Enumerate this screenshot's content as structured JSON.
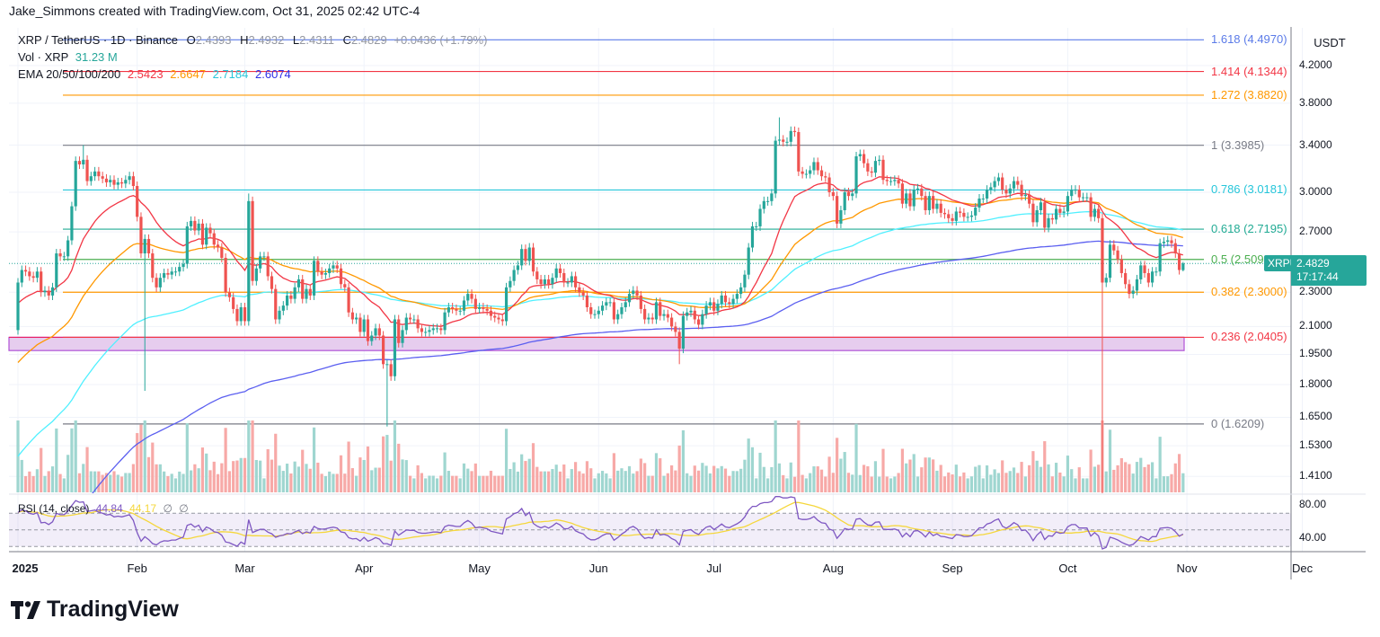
{
  "credit": "Jake_Simmons created with TradingView.com, Oct 31, 2025 02:42 UTC-4",
  "legend": {
    "symbol": "XRP / TetherUS · 1D · Binance",
    "open_label": "O",
    "open": "2.4393",
    "high_label": "H",
    "high": "2.4932",
    "low_label": "L",
    "low": "2.4311",
    "close_label": "C",
    "close": "2.4829",
    "change": "+0.0436 (+1.79%)",
    "vol_label": "Vol · XRP",
    "vol_value": "31.23 M",
    "ema_label": "EMA 20/50/100/200",
    "ema_values": [
      "2.5423",
      "2.6647",
      "2.7184",
      "2.6074"
    ],
    "rsi_label": "RSI (14, close)",
    "rsi_value": "44.84",
    "rsi_ma_value": "44.17",
    "rsi_extra1": "∅",
    "rsi_extra2": "∅"
  },
  "colors": {
    "up": "#26a69a",
    "down": "#ef5350",
    "ema20": "#f23645",
    "ema50": "#ff9800",
    "ema100": "#4ff0ff",
    "ema200": "#5b5ff0",
    "rsi": "#7e57c2",
    "rsi_ma": "#f5d73b",
    "zone_fill": "#e6cdee",
    "zone_border": "#b052d6"
  },
  "price_axis": {
    "unit": "USDT",
    "scale": "log",
    "ticks": [
      "4.2000",
      "3.8000",
      "3.4000",
      "3.0000",
      "2.7000",
      "2.3000",
      "2.1000",
      "1.9500",
      "1.8000",
      "1.6500",
      "1.5300",
      "1.4100"
    ],
    "current_symbol": "XRPUSDT",
    "current_price": "2.4829",
    "countdown": "17:17:44"
  },
  "rsi_axis": {
    "ticks": [
      "80.00",
      "40.00"
    ]
  },
  "time_axis": [
    "2025",
    "Feb",
    "Mar",
    "Apr",
    "May",
    "Jun",
    "Jul",
    "Aug",
    "Sep",
    "Oct",
    "Nov",
    "Dec"
  ],
  "fib_levels": [
    {
      "label": "1.618 (4.4970)",
      "price": 4.497,
      "color": "#5b7be8"
    },
    {
      "label": "1.414 (4.1344)",
      "price": 4.1344,
      "color": "#f23645"
    },
    {
      "label": "1.272 (3.8820)",
      "price": 3.882,
      "color": "#ff9800"
    },
    {
      "label": "1 (3.3985)",
      "price": 3.3985,
      "color": "#787b86"
    },
    {
      "label": "0.786 (3.0181)",
      "price": 3.0181,
      "color": "#26c6da"
    },
    {
      "label": "0.618 (2.7195)",
      "price": 2.7195,
      "color": "#22ab94"
    },
    {
      "label": "0.5 (2.509",
      "price": 2.5093,
      "color": "#4caf50"
    },
    {
      "label": "0.382 (2.3000)",
      "price": 2.3,
      "color": "#ff9800"
    },
    {
      "label": "0.236 (2.0405)",
      "price": 2.0405,
      "color": "#f23645"
    },
    {
      "label": "0 (1.6209)",
      "price": 1.6209,
      "color": "#787b86"
    }
  ],
  "support_zone": {
    "top": 2.0405,
    "bottom": 1.97
  },
  "chart_data": {
    "type": "candlestick",
    "scale": "log",
    "first_open": 2.08,
    "closes_by_month": [
      {
        "month": "2025-01",
        "closes": [
          2.36,
          2.44,
          2.43,
          2.4,
          2.39,
          2.43,
          2.3,
          2.31,
          2.28,
          2.33,
          2.55,
          2.53,
          2.53,
          2.64,
          2.89,
          3.26,
          3.23,
          3.27,
          3.09,
          3.13,
          3.17,
          3.13,
          3.11,
          3.08,
          3.1,
          3.06,
          3.08,
          3.07,
          3.1,
          3.13,
          3.05
        ]
      },
      {
        "month": "2025-02",
        "closes": [
          2.81,
          2.55,
          2.65,
          2.55,
          2.39,
          2.33,
          2.39,
          2.42,
          2.41,
          2.43,
          2.43,
          2.46,
          2.48,
          2.74,
          2.78,
          2.71,
          2.76,
          2.61,
          2.73,
          2.69,
          2.61,
          2.59,
          2.52,
          2.3,
          2.27,
          2.2,
          2.13,
          2.21
        ]
      },
      {
        "month": "2025-03",
        "closes": [
          2.13,
          2.93,
          2.37,
          2.45,
          2.53,
          2.53,
          2.4,
          2.32,
          2.14,
          2.19,
          2.22,
          2.28,
          2.26,
          2.33,
          2.38,
          2.26,
          2.32,
          2.28,
          2.5,
          2.43,
          2.41,
          2.42,
          2.45,
          2.47,
          2.45,
          2.35,
          2.33,
          2.18,
          2.14,
          2.15,
          2.07
        ]
      },
      {
        "month": "2025-04",
        "closes": [
          2.14,
          2.02,
          2.05,
          2.09,
          2.05,
          1.9,
          1.9,
          1.84,
          2.14,
          2.01,
          2.08,
          2.15,
          2.14,
          2.14,
          2.09,
          2.07,
          2.07,
          2.08,
          2.09,
          2.09,
          2.08,
          2.18,
          2.21,
          2.2,
          2.19,
          2.19,
          2.25,
          2.29,
          2.26,
          2.2
        ]
      },
      {
        "month": "2025-05",
        "closes": [
          2.21,
          2.2,
          2.19,
          2.16,
          2.15,
          2.14,
          2.13,
          2.33,
          2.37,
          2.44,
          2.47,
          2.58,
          2.5,
          2.59,
          2.43,
          2.38,
          2.35,
          2.38,
          2.35,
          2.39,
          2.45,
          2.42,
          2.36,
          2.36,
          2.4,
          2.33,
          2.3,
          2.28,
          2.21,
          2.17,
          2.17
        ]
      },
      {
        "month": "2025-06",
        "closes": [
          2.19,
          2.22,
          2.24,
          2.24,
          2.14,
          2.17,
          2.21,
          2.24,
          2.29,
          2.31,
          2.28,
          2.2,
          2.14,
          2.15,
          2.14,
          2.24,
          2.16,
          2.17,
          2.15,
          2.1,
          2.07,
          1.98,
          2.16,
          2.18,
          2.19,
          2.14,
          2.11,
          2.17,
          2.22,
          2.24
        ]
      },
      {
        "month": "2025-07",
        "closes": [
          2.19,
          2.23,
          2.28,
          2.24,
          2.23,
          2.26,
          2.29,
          2.33,
          2.41,
          2.59,
          2.74,
          2.74,
          2.87,
          2.93,
          2.93,
          2.99,
          3.44,
          3.45,
          3.43,
          3.43,
          3.53,
          3.52,
          3.17,
          3.15,
          3.15,
          3.18,
          3.25,
          3.18,
          3.13,
          3.12,
          3.0
        ]
      },
      {
        "month": "2025-08",
        "closes": [
          2.97,
          2.76,
          2.86,
          3.0,
          2.97,
          2.99,
          3.3,
          3.32,
          3.24,
          3.17,
          3.16,
          3.26,
          3.27,
          3.1,
          3.09,
          3.09,
          3.1,
          3.07,
          2.91,
          2.99,
          2.89,
          3.02,
          3.03,
          2.97,
          2.86,
          2.97,
          2.87,
          2.91,
          2.84,
          2.83,
          2.8
        ]
      },
      {
        "month": "2025-09",
        "closes": [
          2.78,
          2.85,
          2.84,
          2.81,
          2.81,
          2.82,
          2.88,
          2.95,
          2.95,
          3.02,
          3.04,
          3.09,
          3.12,
          3.02,
          2.99,
          3.03,
          3.09,
          3.06,
          2.97,
          2.98,
          2.91,
          2.77,
          2.86,
          2.92,
          2.73,
          2.8,
          2.79,
          2.87,
          2.84,
          2.85
        ]
      },
      {
        "month": "2025-10",
        "closes": [
          2.97,
          3.02,
          3.02,
          2.96,
          2.96,
          2.96,
          2.81,
          2.87,
          2.8,
          2.36,
          2.39,
          2.61,
          2.57,
          2.51,
          2.42,
          2.35,
          2.29,
          2.31,
          2.38,
          2.47,
          2.42,
          2.36,
          2.43,
          2.43,
          2.62,
          2.63,
          2.64,
          2.62,
          2.55,
          2.44,
          2.4829
        ]
      }
    ],
    "extremes": [
      {
        "date": "2025-01-18",
        "high": 3.4
      },
      {
        "date": "2025-02-03",
        "low": 1.77
      },
      {
        "date": "2025-03-02",
        "high": 2.99
      },
      {
        "date": "2025-04-07",
        "low": 1.61
      },
      {
        "date": "2025-06-22",
        "low": 1.9
      },
      {
        "date": "2025-07-18",
        "high": 3.66
      },
      {
        "date": "2025-10-10",
        "low": 1.25
      },
      {
        "date": "2025-10-31",
        "high": 2.4932,
        "low": 2.4311
      }
    ]
  },
  "brand": "TradingView"
}
